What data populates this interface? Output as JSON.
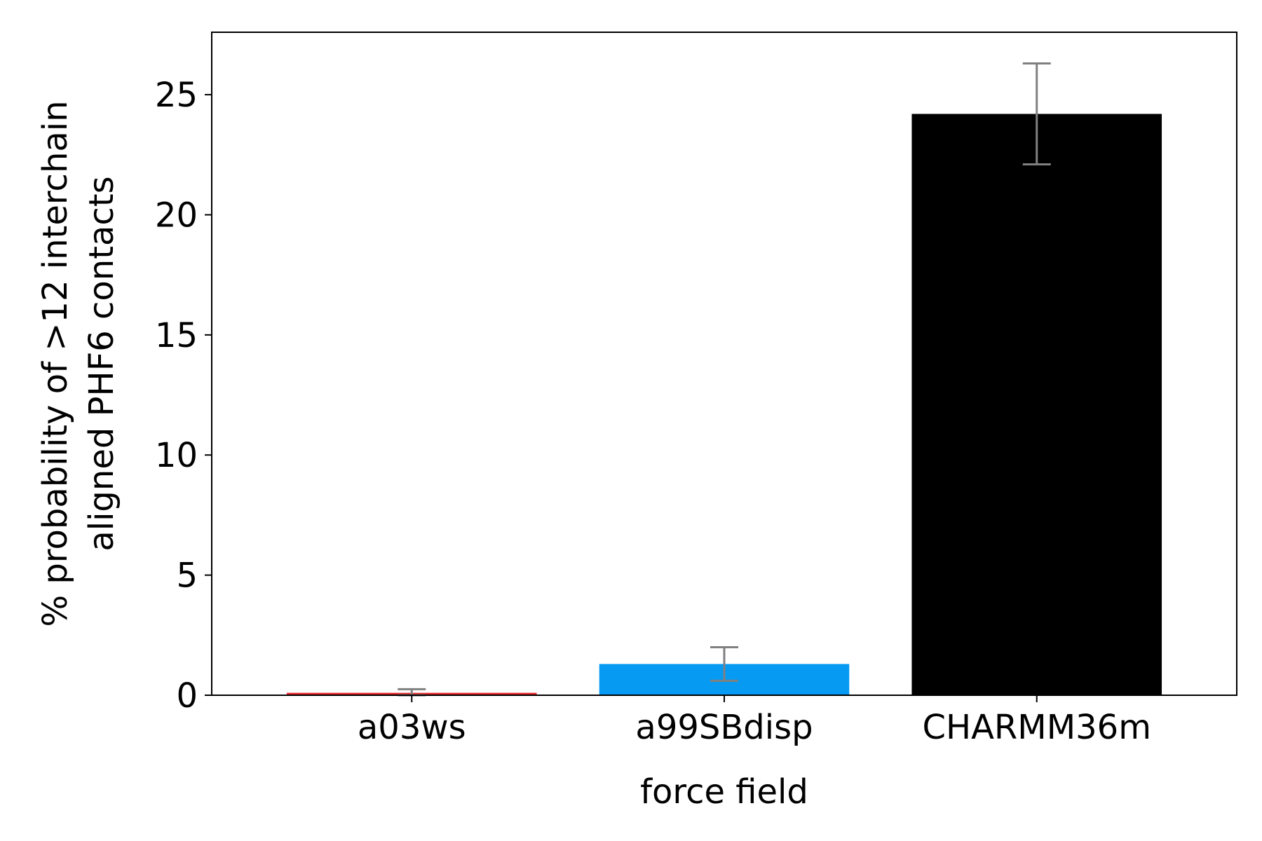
{
  "chart_data": {
    "type": "bar",
    "categories": [
      "a03ws",
      "a99SBdisp",
      "CHARMM36m"
    ],
    "values": [
      0.1,
      1.3,
      24.2
    ],
    "errors": [
      0.15,
      0.7,
      2.1
    ],
    "colors": [
      "#e8252a",
      "#069af3",
      "#000000"
    ],
    "error_color": "#808080",
    "xlabel": "force field",
    "ylabel_lines": [
      "% probability of >12 interchain",
      "aligned PHF6 contacts"
    ],
    "ylim": [
      0,
      27.6
    ],
    "yticks": [
      0,
      5,
      10,
      15,
      20,
      25
    ],
    "grid": false
  }
}
